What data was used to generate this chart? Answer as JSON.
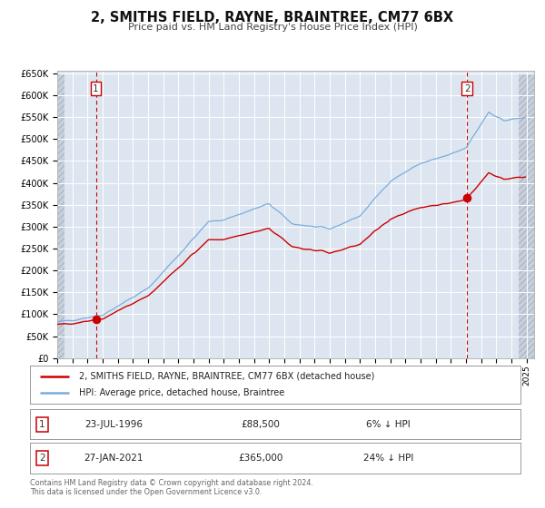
{
  "title": "2, SMITHS FIELD, RAYNE, BRAINTREE, CM77 6BX",
  "subtitle": "Price paid vs. HM Land Registry's House Price Index (HPI)",
  "background_color": "#ffffff",
  "plot_background_color": "#dde6f0",
  "grid_color": "#ffffff",
  "legend_label_red": "2, SMITHS FIELD, RAYNE, BRAINTREE, CM77 6BX (detached house)",
  "legend_label_blue": "HPI: Average price, detached house, Braintree",
  "sale1_date_label": "23-JUL-1996",
  "sale1_price_label": "£88,500",
  "sale1_hpi_diff": "6% ↓ HPI",
  "sale1_year": 1996.55,
  "sale1_price": 88500,
  "sale2_date_label": "27-JAN-2021",
  "sale2_price_label": "£365,000",
  "sale2_hpi_diff": "24% ↓ HPI",
  "sale2_year": 2021.07,
  "sale2_price": 365000,
  "red_color": "#cc0000",
  "blue_color": "#7aacdc",
  "footer_text": "Contains HM Land Registry data © Crown copyright and database right 2024.\nThis data is licensed under the Open Government Licence v3.0.",
  "ylim_max": 650000,
  "ylim_min": 0,
  "ytick_values": [
    0,
    50000,
    100000,
    150000,
    200000,
    250000,
    300000,
    350000,
    400000,
    450000,
    500000,
    550000,
    600000,
    650000
  ],
  "ytick_labels": [
    "£0",
    "£50K",
    "£100K",
    "£150K",
    "£200K",
    "£250K",
    "£300K",
    "£350K",
    "£400K",
    "£450K",
    "£500K",
    "£550K",
    "£600K",
    "£650K"
  ]
}
